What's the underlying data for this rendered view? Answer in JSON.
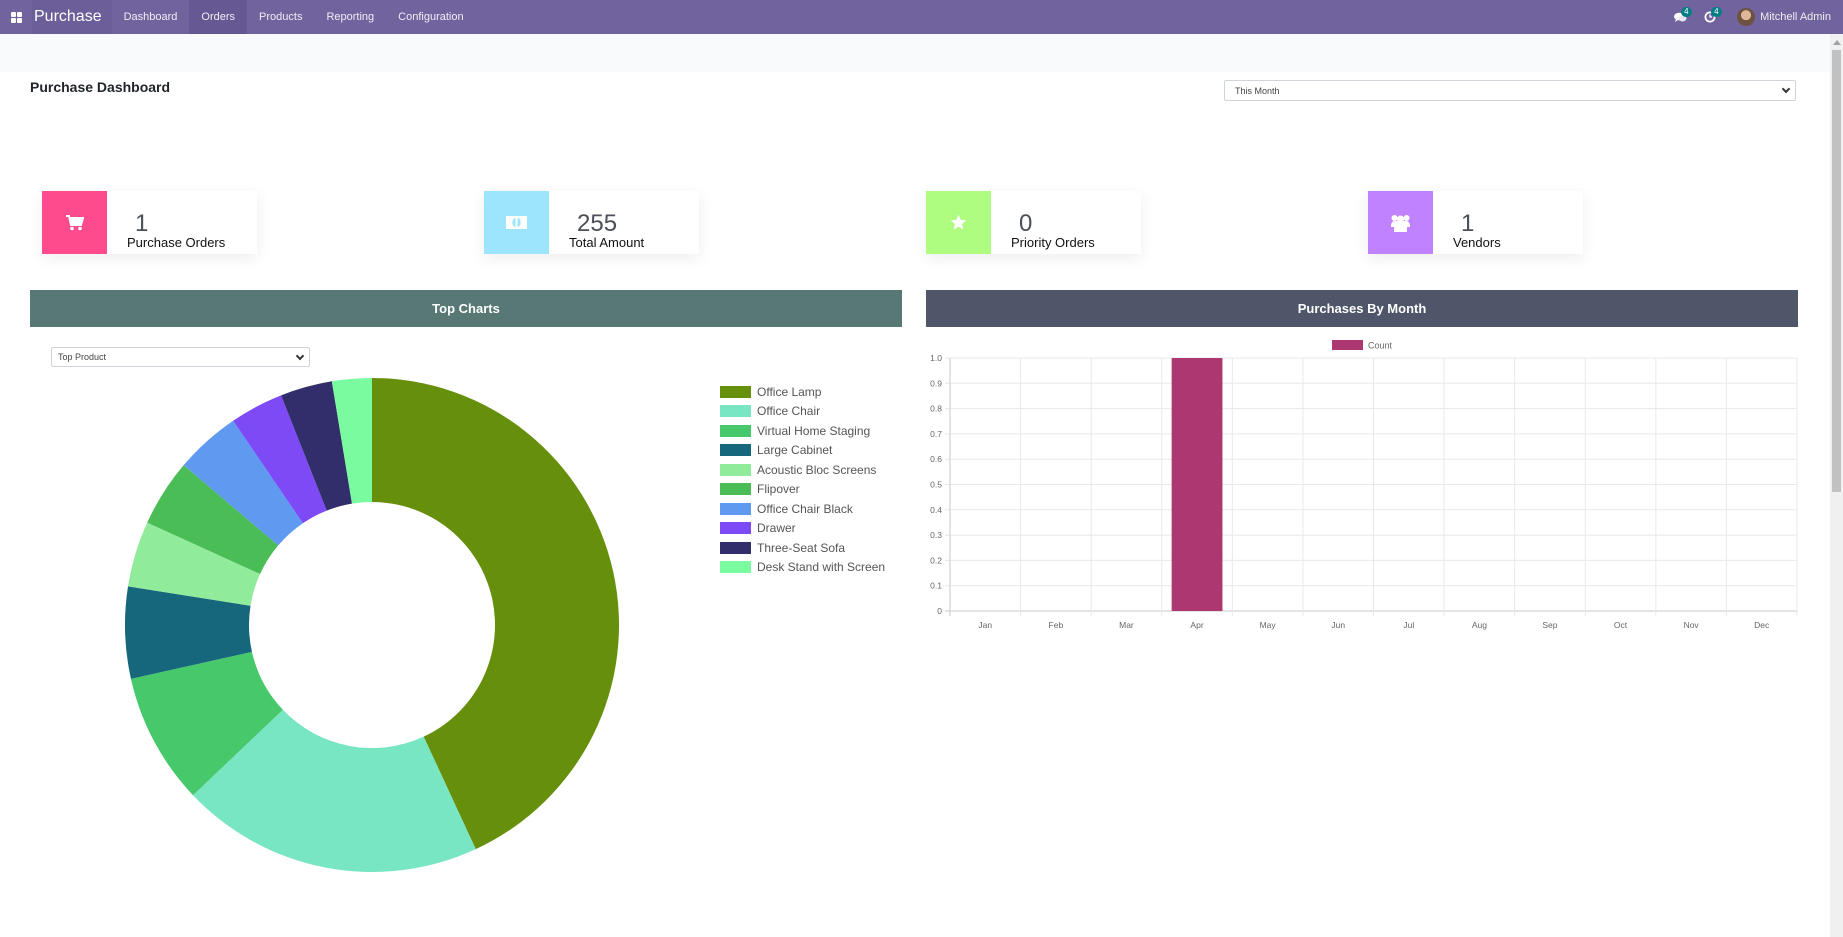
{
  "navbar": {
    "app_name": "Purchase",
    "menu": [
      {
        "label": "Dashboard",
        "active": false
      },
      {
        "label": "Orders",
        "active": true
      },
      {
        "label": "Products",
        "active": false
      },
      {
        "label": "Reporting",
        "active": false
      },
      {
        "label": "Configuration",
        "active": false
      }
    ],
    "messages_icon": "chat-icon",
    "messages_count": "4",
    "activities_icon": "clock-icon",
    "activities_count": "4",
    "user_name": "Mitchell Admin",
    "bg_color": "#71639e"
  },
  "page": {
    "title": "Purchase Dashboard",
    "period_filter": {
      "selected": "This Month"
    }
  },
  "kpis": [
    {
      "icon": "shopping-cart-icon",
      "value": "1",
      "label": "Purchase Orders",
      "color": "#fd4b8e"
    },
    {
      "icon": "money-icon",
      "value": "255",
      "label": "Total Amount",
      "color": "#9ce5fd"
    },
    {
      "icon": "star-icon",
      "value": "0",
      "label": "Priority Orders",
      "color": "#aefd80"
    },
    {
      "icon": "users-icon",
      "value": "1",
      "label": "Vendors",
      "color": "#c082fe"
    }
  ],
  "top_charts": {
    "title": "Top Charts",
    "header_color": "#587876",
    "filter": {
      "selected": "Top Product"
    }
  },
  "purchases_by_month": {
    "title": "Purchases By Month",
    "header_color": "#50566a"
  },
  "chart_data": [
    {
      "type": "pie",
      "variant": "doughnut",
      "title": "Top Product",
      "legend_position": "right",
      "categories": [
        "Office Lamp",
        "Office Chair",
        "Virtual Home Staging",
        "Large Cabinet",
        "Acoustic Bloc Screens",
        "Flipover",
        "Office Chair Black",
        "Drawer",
        "Three-Seat Sofa",
        "Desk Stand with Screen"
      ],
      "values": [
        43.1,
        19.8,
        8.6,
        6.0,
        4.3,
        4.4,
        4.3,
        3.5,
        3.4,
        2.6
      ],
      "colors": [
        "#668f0b",
        "#78e6c3",
        "#47c96b",
        "#17677c",
        "#90eb9a",
        "#4bbd57",
        "#5f99f0",
        "#7d4af5",
        "#322e6b",
        "#7afb9f"
      ]
    },
    {
      "type": "bar",
      "title": "Purchases By Month",
      "legend": [
        {
          "label": "Count",
          "color": "#ad3871"
        }
      ],
      "legend_position": "top",
      "categories": [
        "Jan",
        "Feb",
        "Mar",
        "Apr",
        "May",
        "Jun",
        "Jul",
        "Aug",
        "Sep",
        "Oct",
        "Nov",
        "Dec"
      ],
      "series": [
        {
          "name": "Count",
          "values": [
            0,
            0,
            0,
            1,
            0,
            0,
            0,
            0,
            0,
            0,
            0,
            0
          ],
          "color": "#ad3871"
        }
      ],
      "yticks": [
        "0",
        "0.1",
        "0.2",
        "0.3",
        "0.4",
        "0.5",
        "0.6",
        "0.7",
        "0.8",
        "0.9",
        "1.0"
      ],
      "ylim": [
        0,
        1
      ],
      "grid": true,
      "xlabel": "",
      "ylabel": ""
    }
  ]
}
